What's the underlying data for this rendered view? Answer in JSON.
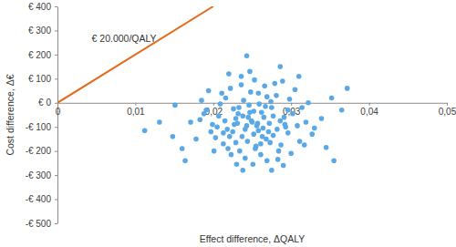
{
  "chart_data": {
    "type": "scatter",
    "x_label": "Effect difference, ΔQALY",
    "y_label": "Cost difference, Δ€",
    "xlim": [
      0,
      0.05
    ],
    "ylim": [
      -500,
      400
    ],
    "xticks": [
      0,
      {
        "value": 0.01,
        "label": "0,01"
      },
      {
        "value": 0.02,
        "label": "0,02"
      },
      {
        "value": 0.03,
        "label": "0,03"
      },
      {
        "value": 0.04,
        "label": "0,04"
      },
      {
        "value": 0.05,
        "label": "0,05"
      }
    ],
    "yticks": [
      {
        "value": 400,
        "label": "€ 400"
      },
      {
        "value": 300,
        "label": "€ 300"
      },
      {
        "value": 200,
        "label": "€ 200"
      },
      {
        "value": 100,
        "label": "€ 100"
      },
      {
        "value": 0,
        "label": "€ 0"
      },
      {
        "value": -100,
        "label": "-€ 100"
      },
      {
        "value": -200,
        "label": "-€ 200"
      },
      {
        "value": -300,
        "label": "-€ 300"
      },
      {
        "value": -400,
        "label": "-€ 400"
      },
      {
        "value": -500,
        "label": "-€ 500"
      }
    ],
    "grid": false,
    "annotations": [
      {
        "text": "€ 20.000/QALY",
        "x": 0.0044,
        "y": 262
      }
    ],
    "series": [
      {
        "type": "scatter",
        "marker": "circle",
        "color": "#5aa9e6",
        "x": [
          0.0245,
          0.0231,
          0.0262,
          0.0218,
          0.0275,
          0.0252,
          0.0239,
          0.0286,
          0.0207,
          0.0268,
          0.0226,
          0.0293,
          0.0248,
          0.0213,
          0.0259,
          0.0234,
          0.0281,
          0.0199,
          0.0271,
          0.0243,
          0.0302,
          0.0222,
          0.0255,
          0.0237,
          0.0266,
          0.0191,
          0.0311,
          0.0229,
          0.0257,
          0.0284,
          0.0246,
          0.0216,
          0.0277,
          0.0203,
          0.0298,
          0.0241,
          0.0264,
          0.0225,
          0.0289,
          0.0252,
          0.0183,
          0.0319,
          0.0236,
          0.0261,
          0.0209,
          0.0273,
          0.0249,
          0.0296,
          0.0219,
          0.0258,
          0.0232,
          0.0305,
          0.0267,
          0.0197,
          0.0244,
          0.0282,
          0.0227,
          0.0253,
          0.0314,
          0.0211,
          0.0269,
          0.0238,
          0.0291,
          0.0178,
          0.0256,
          0.0223,
          0.0274,
          0.0247,
          0.0327,
          0.0205,
          0.0263,
          0.0233,
          0.0287,
          0.0251,
          0.0194,
          0.0279,
          0.0241,
          0.0308,
          0.0215,
          0.0265,
          0.0229,
          0.0296,
          0.0254,
          0.0188,
          0.0272,
          0.0236,
          0.0317,
          0.0258,
          0.0221,
          0.0283,
          0.0247,
          0.0201,
          0.0269,
          0.0339,
          0.023,
          0.0261,
          0.0292,
          0.0213,
          0.025,
          0.0277,
          0.0171,
          0.0243,
          0.0322,
          0.0286,
          0.0355,
          0.0365,
          0.0372,
          0.0112,
          0.0131,
          0.0151,
          0.016,
          0.0345,
          0.0238,
          0.029,
          0.0164,
          0.0352,
          0.0148,
          0.022,
          0.031,
          0.03,
          0.0185,
          0.033,
          0.0275
        ],
        "values": [
          -60,
          -85,
          -40,
          -110,
          -20,
          -130,
          10,
          -75,
          -55,
          -150,
          -25,
          -100,
          45,
          -170,
          -5,
          -200,
          30,
          -90,
          -120,
          -95,
          -45,
          60,
          -180,
          -140,
          70,
          -30,
          -160,
          -65,
          -85,
          -200,
          -10,
          20,
          -55,
          -145,
          15,
          -230,
          -105,
          -120,
          90,
          -35,
          -70,
          -80,
          110,
          -215,
          -5,
          -165,
          -75,
          -125,
          -190,
          40,
          -45,
          55,
          -15,
          -120,
          -160,
          -110,
          -90,
          95,
          -20,
          40,
          -240,
          -55,
          -60,
          -150,
          -95,
          -215,
          5,
          130,
          -130,
          -100,
          -140,
          -20,
          -175,
          -255,
          50,
          80,
          -110,
          -95,
          -75,
          -60,
          -165,
          -30,
          -190,
          -45,
          -85,
          75,
          -175,
          -115,
          -140,
          -235,
          -40,
          -200,
          25,
          -65,
          -255,
          -170,
          -90,
          -125,
          -80,
          -135,
          -80,
          195,
          0,
          150,
          -240,
          -30,
          60,
          -115,
          -80,
          -10,
          -190,
          -185,
          -280,
          -260,
          -240,
          20,
          -140,
          120,
          110,
          -210,
          10,
          -105,
          -280
        ]
      },
      {
        "type": "line",
        "color": "#e36c1c",
        "x": [
          0,
          0.02
        ],
        "values": [
          0,
          400
        ]
      }
    ]
  }
}
